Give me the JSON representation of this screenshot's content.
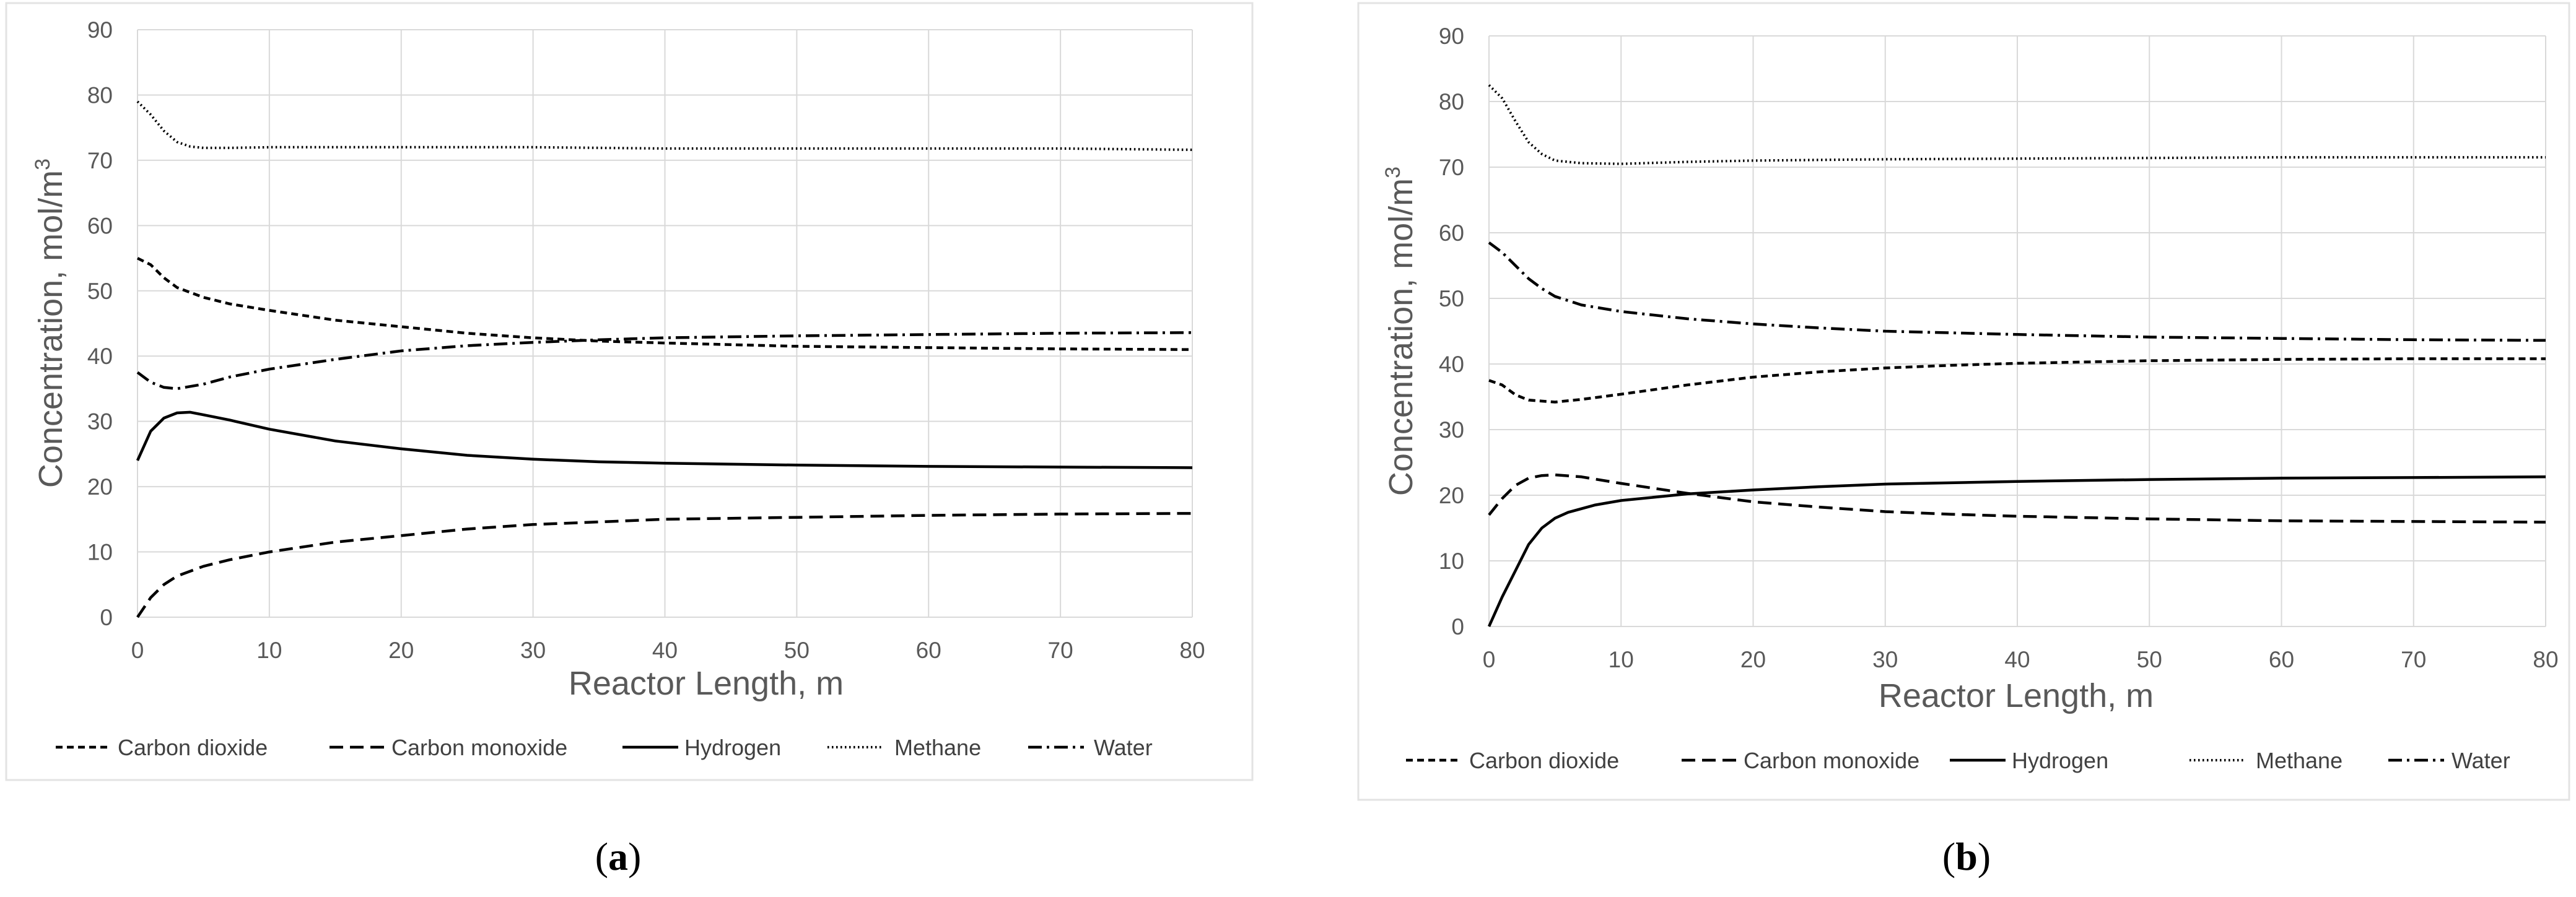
{
  "chart_data": [
    {
      "panel": "(a)",
      "caption_prefix": "(",
      "caption_letter": "a",
      "caption_suffix": ")",
      "type": "line",
      "xlabel": "Reactor Length, m",
      "ylabel_main": "Concentration, mol/m",
      "ylabel_sup": "3",
      "xlim": [
        0,
        80
      ],
      "ylim": [
        0,
        90
      ],
      "x_ticks": [
        0,
        10,
        20,
        30,
        40,
        50,
        60,
        70,
        80
      ],
      "y_ticks": [
        0,
        10,
        20,
        30,
        40,
        50,
        60,
        70,
        80,
        90
      ],
      "grid": "vertical and horizontal",
      "legend_position": "bottom",
      "series": [
        {
          "name": "Carbon dioxide",
          "style": "short-dash",
          "x": [
            0,
            1,
            2,
            3,
            5,
            7,
            10,
            15,
            20,
            25,
            30,
            35,
            40,
            50,
            60,
            70,
            80
          ],
          "y": [
            55,
            54,
            52,
            50.5,
            49,
            48,
            47,
            45.5,
            44.5,
            43.5,
            42.8,
            42.3,
            42,
            41.5,
            41.3,
            41.1,
            41
          ]
        },
        {
          "name": "Carbon monoxide",
          "style": "long-dash",
          "x": [
            0,
            1,
            2,
            3,
            5,
            7,
            10,
            15,
            20,
            25,
            30,
            35,
            40,
            50,
            60,
            70,
            80
          ],
          "y": [
            0,
            3,
            5,
            6.3,
            7.8,
            8.8,
            10,
            11.5,
            12.5,
            13.5,
            14.2,
            14.6,
            15,
            15.3,
            15.6,
            15.8,
            15.9
          ]
        },
        {
          "name": "Hydrogen",
          "style": "solid",
          "x": [
            0,
            1,
            2,
            3,
            4,
            5,
            7,
            10,
            15,
            20,
            25,
            30,
            35,
            40,
            50,
            60,
            70,
            80
          ],
          "y": [
            24,
            28.5,
            30.5,
            31.3,
            31.4,
            31,
            30.2,
            28.8,
            27,
            25.8,
            24.8,
            24.2,
            23.8,
            23.6,
            23.3,
            23.1,
            23,
            22.9
          ]
        },
        {
          "name": "Methane",
          "style": "dotted",
          "x": [
            0,
            1,
            2,
            3,
            4,
            5,
            7,
            10,
            20,
            30,
            40,
            50,
            60,
            70,
            80
          ],
          "y": [
            79,
            77,
            74.5,
            72.8,
            72.1,
            71.9,
            71.9,
            72,
            72,
            72,
            71.8,
            71.8,
            71.8,
            71.8,
            71.6
          ]
        },
        {
          "name": "Water",
          "style": "dash-dot",
          "x": [
            0,
            1,
            2,
            3,
            5,
            7,
            10,
            15,
            20,
            25,
            30,
            35,
            40,
            50,
            60,
            70,
            80
          ],
          "y": [
            37.5,
            36,
            35.2,
            35,
            35.7,
            36.8,
            38,
            39.5,
            40.8,
            41.6,
            42.1,
            42.5,
            42.8,
            43.1,
            43.3,
            43.5,
            43.6
          ]
        }
      ]
    },
    {
      "panel": "(b)",
      "caption_prefix": "(",
      "caption_letter": "b",
      "caption_suffix": ")",
      "type": "line",
      "xlabel": "Reactor Length, m",
      "ylabel_main": "Concentration, mol/m",
      "ylabel_sup": "3",
      "xlim": [
        0,
        80
      ],
      "ylim": [
        0,
        90
      ],
      "x_ticks": [
        0,
        10,
        20,
        30,
        40,
        50,
        60,
        70,
        80
      ],
      "y_ticks": [
        0,
        10,
        20,
        30,
        40,
        50,
        60,
        70,
        80,
        90
      ],
      "grid": "vertical and horizontal",
      "legend_position": "bottom",
      "series": [
        {
          "name": "Carbon dioxide",
          "style": "short-dash",
          "x": [
            0,
            1,
            2,
            3,
            5,
            7,
            10,
            15,
            20,
            25,
            30,
            35,
            40,
            50,
            60,
            70,
            80
          ],
          "y": [
            37.5,
            36.8,
            35.3,
            34.5,
            34.2,
            34.6,
            35.4,
            36.8,
            38,
            38.8,
            39.4,
            39.8,
            40.1,
            40.5,
            40.7,
            40.8,
            40.8
          ]
        },
        {
          "name": "Carbon monoxide",
          "style": "long-dash",
          "x": [
            0,
            1,
            2,
            3,
            4,
            5,
            7,
            10,
            15,
            20,
            25,
            30,
            35,
            40,
            50,
            60,
            70,
            80
          ],
          "y": [
            17,
            19.5,
            21.5,
            22.6,
            23,
            23.1,
            22.8,
            21.8,
            20.3,
            19,
            18.2,
            17.5,
            17.1,
            16.8,
            16.4,
            16.1,
            16,
            15.9
          ]
        },
        {
          "name": "Hydrogen",
          "style": "solid",
          "x": [
            0,
            1,
            2,
            3,
            4,
            5,
            6,
            8,
            10,
            15,
            20,
            25,
            30,
            40,
            50,
            60,
            70,
            80
          ],
          "y": [
            0,
            4.5,
            8.5,
            12.5,
            15,
            16.5,
            17.4,
            18.5,
            19.2,
            20.2,
            20.8,
            21.3,
            21.7,
            22.1,
            22.4,
            22.6,
            22.7,
            22.8
          ]
        },
        {
          "name": "Methane",
          "style": "dotted",
          "x": [
            0,
            1,
            2,
            3,
            4,
            5,
            7,
            10,
            15,
            20,
            30,
            40,
            50,
            60,
            70,
            80
          ],
          "y": [
            82.5,
            80.5,
            77,
            73.8,
            72,
            71,
            70.6,
            70.5,
            70.8,
            71,
            71.2,
            71.3,
            71.4,
            71.5,
            71.5,
            71.5
          ]
        },
        {
          "name": "Water",
          "style": "dash-dot",
          "x": [
            0,
            1,
            2,
            3,
            4,
            5,
            7,
            10,
            15,
            20,
            25,
            30,
            40,
            50,
            60,
            70,
            80
          ],
          "y": [
            58.5,
            57,
            55,
            53,
            51.5,
            50.3,
            49,
            48,
            46.9,
            46.1,
            45.5,
            45,
            44.5,
            44.1,
            43.9,
            43.7,
            43.6
          ]
        }
      ]
    }
  ]
}
